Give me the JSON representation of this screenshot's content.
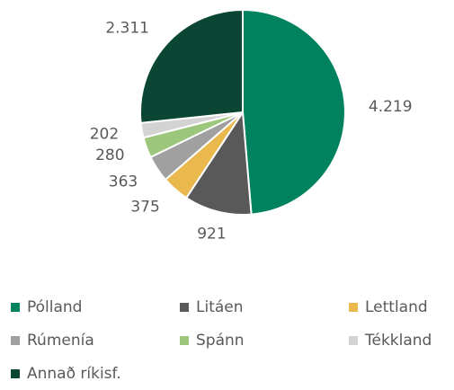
{
  "chart_data": {
    "type": "pie",
    "categories": [
      "Pólland",
      "Litáen",
      "Lettland",
      "Rúmenía",
      "Spánn",
      "Tékkland",
      "Annað ríkisf."
    ],
    "values": [
      4219,
      921,
      375,
      363,
      280,
      202,
      2311
    ],
    "value_labels": [
      "4.219",
      "921",
      "375",
      "363",
      "280",
      "202",
      "2.311"
    ],
    "colors": [
      "#00825f",
      "#595959",
      "#e9b94e",
      "#a0a0a0",
      "#9cc67b",
      "#d3d3d3",
      "#0a4633"
    ],
    "legend": "bottom"
  }
}
